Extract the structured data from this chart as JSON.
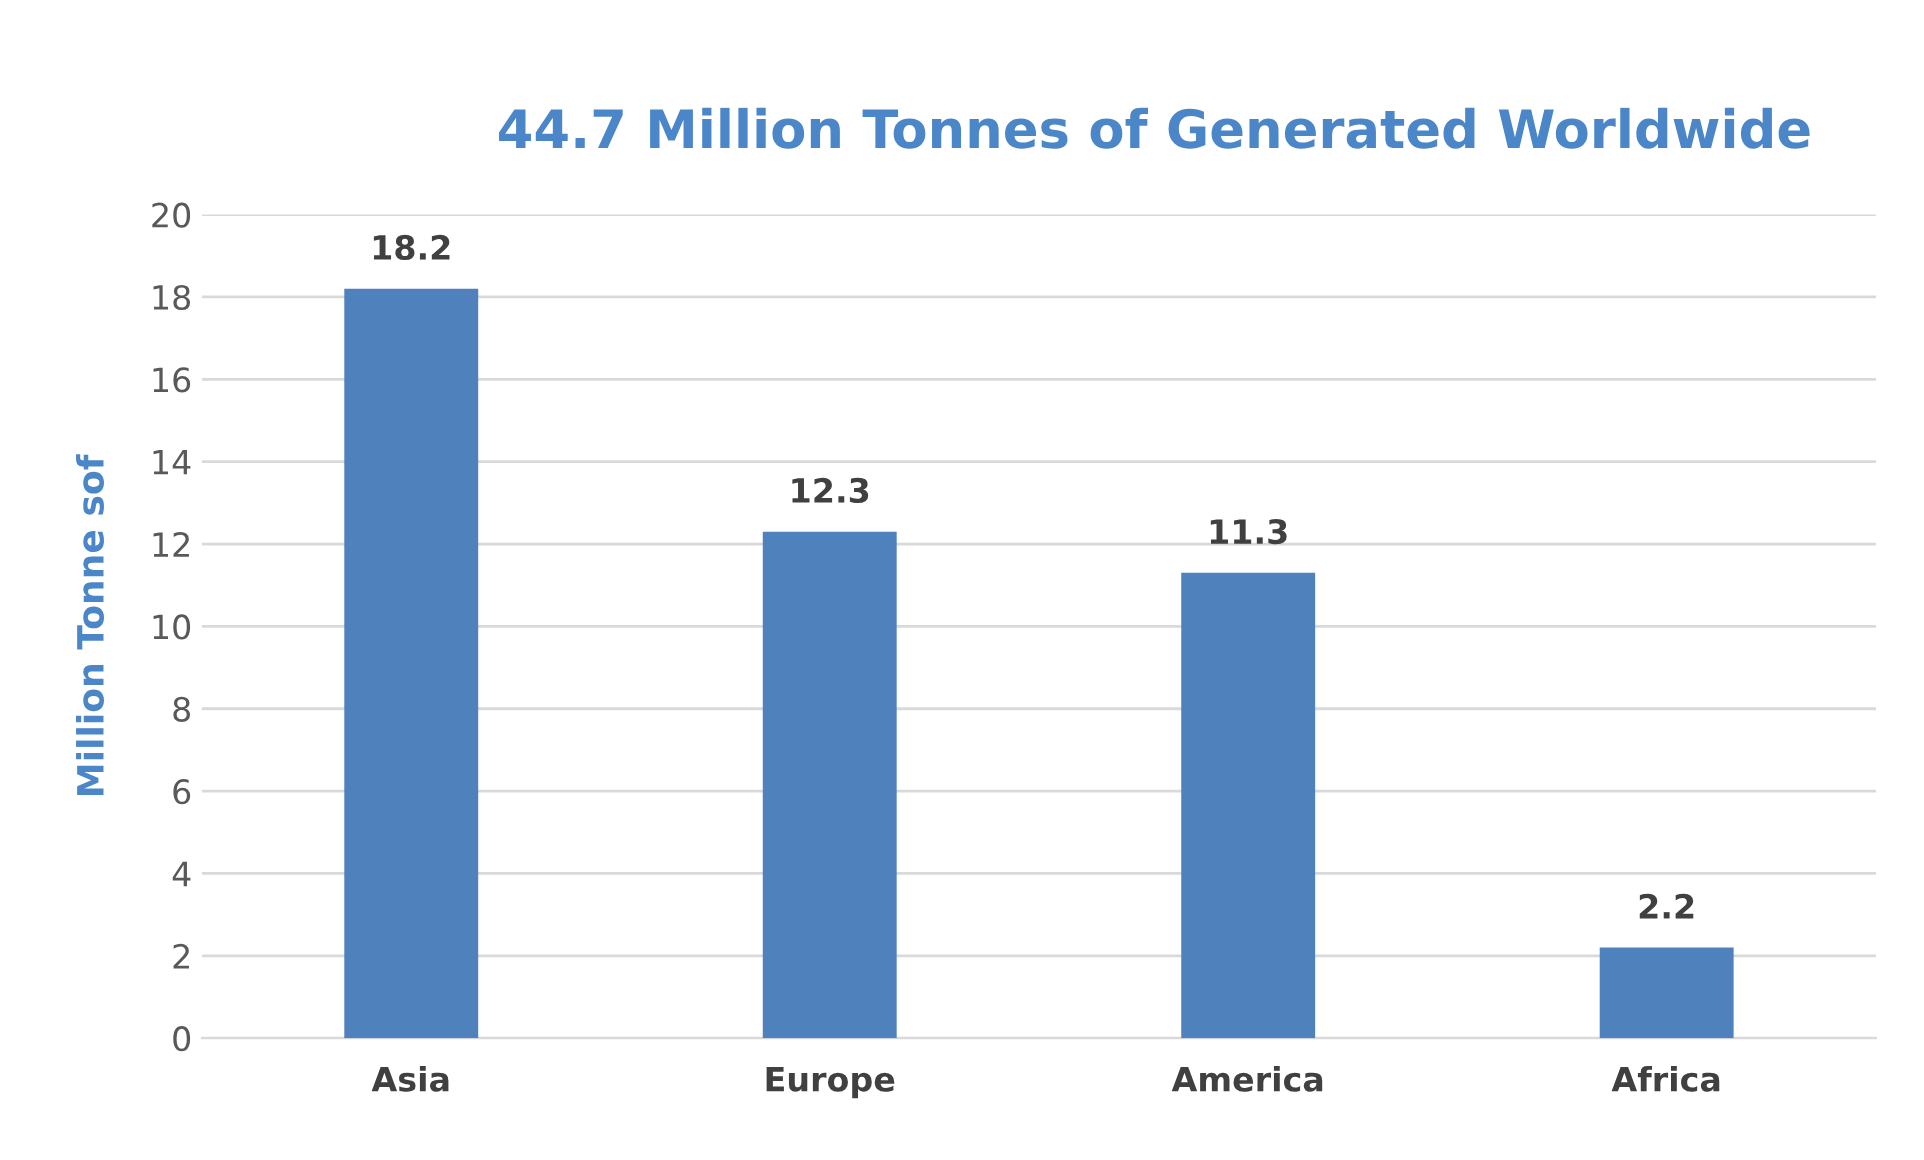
{
  "chart_data": {
    "type": "bar",
    "title": "44.7 Million Tonnes of Generated Worldwide",
    "ylabel": "Million Tonne sof",
    "categories": [
      "Asia",
      "Europe",
      "America",
      "Africa"
    ],
    "values": [
      18.2,
      12.3,
      11.3,
      2.2
    ],
    "color": "#4f81bd",
    "ylim": [
      0,
      20
    ],
    "yticks": [
      0,
      2,
      4,
      6,
      8,
      10,
      12,
      14,
      16,
      18,
      20
    ],
    "grid": "y",
    "data_labels": true
  }
}
